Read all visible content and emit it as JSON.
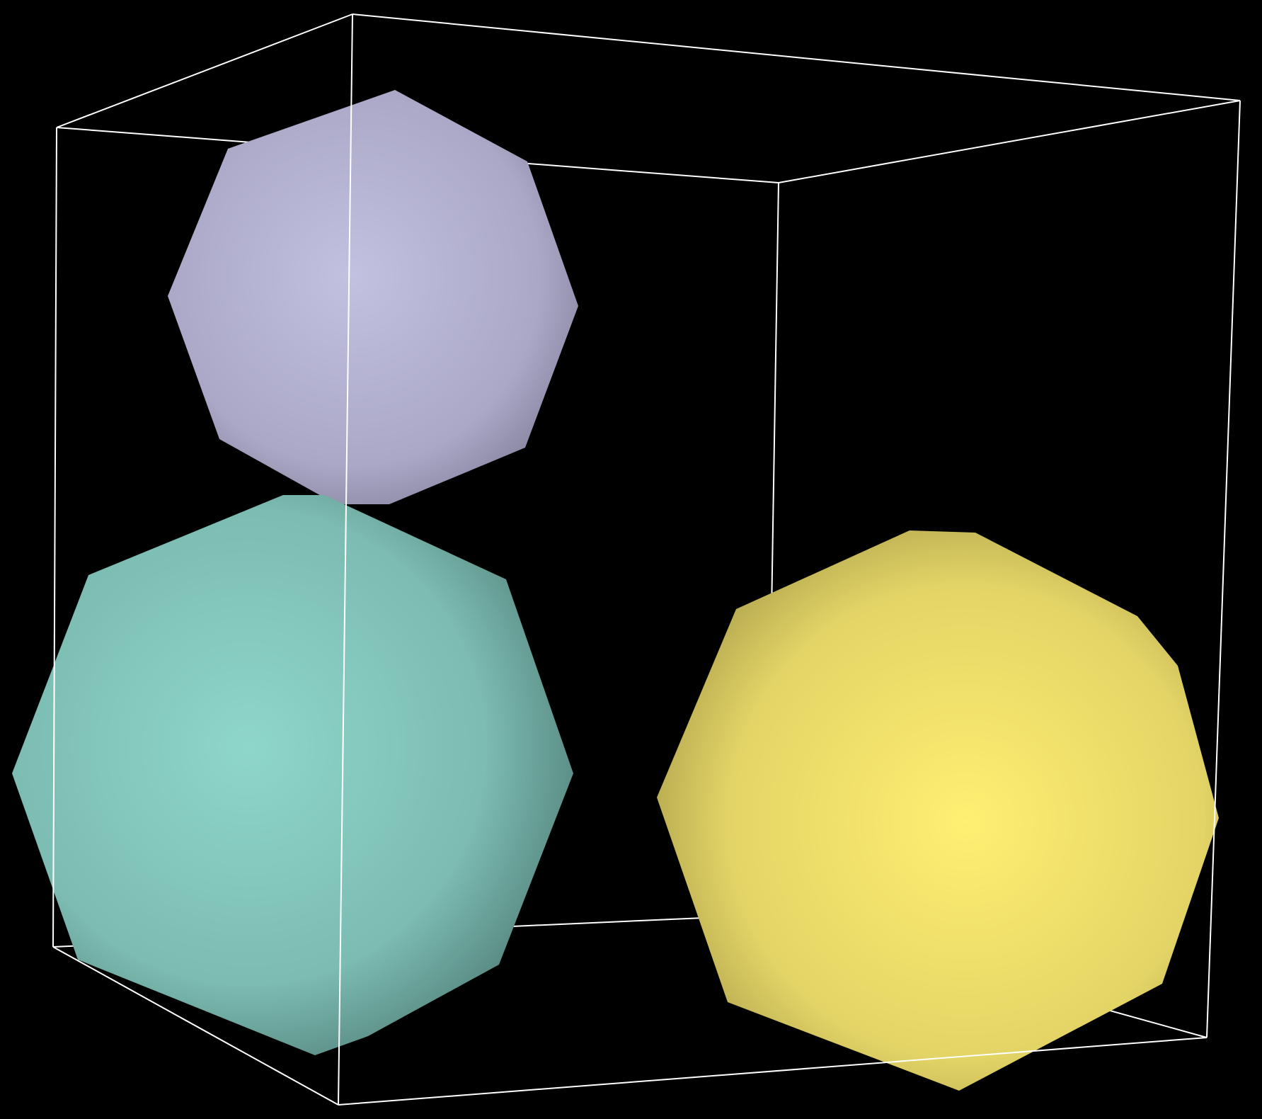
{
  "scene": {
    "background": "#000000",
    "box_color": "#ffffff",
    "objects": [
      {
        "name": "lavender-polyhedron",
        "color": "#bcbbdb"
      },
      {
        "name": "teal-polyhedron",
        "color": "#8dd3c7"
      },
      {
        "name": "yellow-polyhedron",
        "color": "#ffed6f"
      }
    ]
  }
}
